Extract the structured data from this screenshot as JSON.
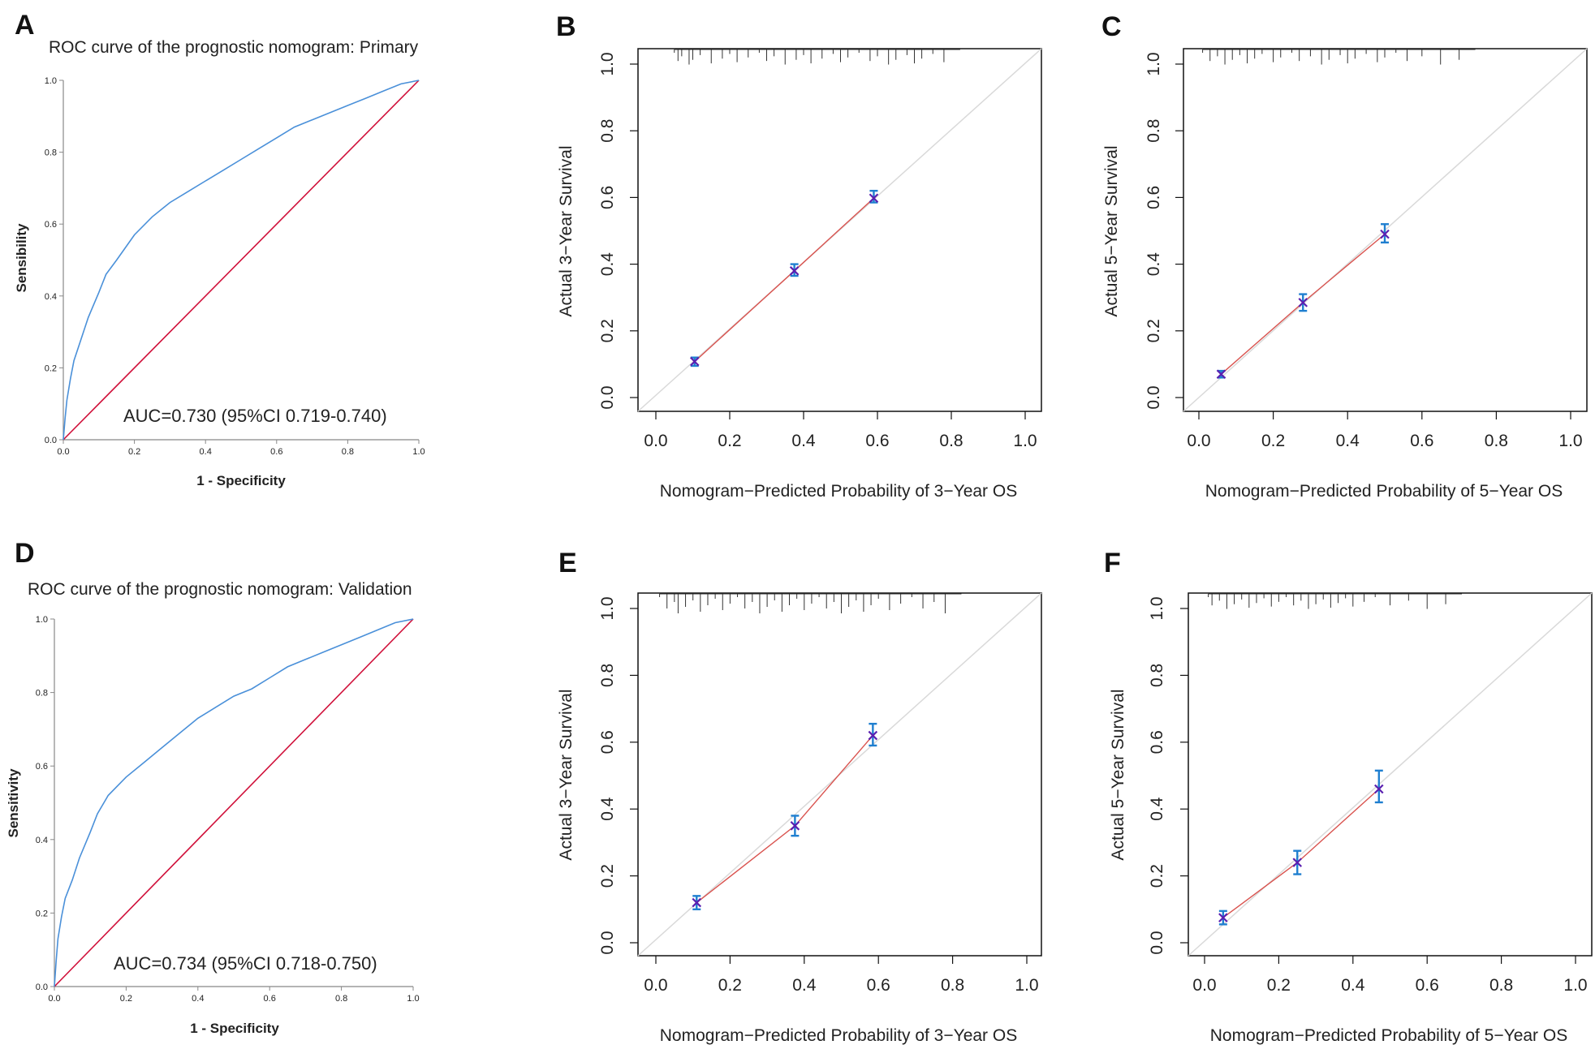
{
  "chart_data": [
    {
      "panel_label": "A",
      "type": "line",
      "kind": "roc",
      "title": "ROC curve of the prognostic nomogram: Primary",
      "xlabel": "1 - Specificity",
      "ylabel": "Sensibility",
      "xlim": [
        0,
        1
      ],
      "ylim": [
        0,
        1
      ],
      "xticks": [
        "0.0",
        "0.2",
        "0.4",
        "0.6",
        "0.8",
        "1.0"
      ],
      "yticks": [
        "0.0",
        "0.2",
        "0.4",
        "0.6",
        "0.8",
        "1.0"
      ],
      "annotation": "AUC=0.730 (95%CI 0.719-0.740)",
      "curve_color": "#4a90d9",
      "reference_color": "#d0103a",
      "series": [
        {
          "x": [
            0,
            0.005,
            0.01,
            0.02,
            0.03,
            0.05,
            0.07,
            0.1,
            0.12,
            0.15,
            0.2,
            0.25,
            0.3,
            0.35,
            0.4,
            0.45,
            0.5,
            0.55,
            0.6,
            0.65,
            0.7,
            0.75,
            0.8,
            0.85,
            0.9,
            0.95,
            1.0
          ],
          "y": [
            0,
            0.06,
            0.11,
            0.17,
            0.22,
            0.28,
            0.34,
            0.41,
            0.46,
            0.5,
            0.57,
            0.62,
            0.66,
            0.69,
            0.72,
            0.75,
            0.78,
            0.81,
            0.84,
            0.87,
            0.89,
            0.91,
            0.93,
            0.95,
            0.97,
            0.99,
            1.0
          ]
        },
        {
          "x": [
            0,
            1
          ],
          "y": [
            0,
            1
          ]
        }
      ]
    },
    {
      "panel_label": "B",
      "type": "scatter",
      "kind": "calibration",
      "xlabel": "Nomogram−Predicted Probability of 3−Year OS",
      "ylabel": "Actual 3−Year Survival",
      "xlim": [
        0,
        1
      ],
      "ylim": [
        0,
        1
      ],
      "xticks": [
        "0.0",
        "0.2",
        "0.4",
        "0.6",
        "0.8",
        "1.0"
      ],
      "yticks": [
        "0.0",
        "0.2",
        "0.4",
        "0.6",
        "0.8",
        "1.0"
      ],
      "points": [
        {
          "x": 0.105,
          "y": 0.108,
          "lo": 0.095,
          "hi": 0.12
        },
        {
          "x": 0.375,
          "y": 0.38,
          "lo": 0.365,
          "hi": 0.4
        },
        {
          "x": 0.59,
          "y": 0.598,
          "lo": 0.585,
          "hi": 0.62
        }
      ],
      "rug": [
        0.05,
        0.06,
        0.07,
        0.09,
        0.1,
        0.12,
        0.15,
        0.18,
        0.2,
        0.22,
        0.25,
        0.28,
        0.3,
        0.32,
        0.35,
        0.38,
        0.4,
        0.42,
        0.45,
        0.48,
        0.5,
        0.52,
        0.55,
        0.58,
        0.6,
        0.63,
        0.65,
        0.68,
        0.7,
        0.72,
        0.75,
        0.78
      ]
    },
    {
      "panel_label": "C",
      "type": "scatter",
      "kind": "calibration",
      "xlabel": "Nomogram−Predicted Probability of 5−Year OS",
      "ylabel": "Actual 5−Year Survival",
      "xlim": [
        0,
        1
      ],
      "ylim": [
        0,
        1
      ],
      "xticks": [
        "0.0",
        "0.2",
        "0.4",
        "0.6",
        "0.8",
        "1.0"
      ],
      "yticks": [
        "0.0",
        "0.2",
        "0.4",
        "0.6",
        "0.8",
        "1.0"
      ],
      "points": [
        {
          "x": 0.06,
          "y": 0.07,
          "lo": 0.06,
          "hi": 0.08
        },
        {
          "x": 0.28,
          "y": 0.285,
          "lo": 0.26,
          "hi": 0.31
        },
        {
          "x": 0.5,
          "y": 0.49,
          "lo": 0.465,
          "hi": 0.52
        }
      ],
      "rug": [
        0.01,
        0.03,
        0.05,
        0.07,
        0.09,
        0.11,
        0.13,
        0.15,
        0.17,
        0.2,
        0.22,
        0.25,
        0.27,
        0.3,
        0.33,
        0.35,
        0.38,
        0.4,
        0.42,
        0.45,
        0.48,
        0.5,
        0.53,
        0.56,
        0.6,
        0.65,
        0.7
      ]
    },
    {
      "panel_label": "D",
      "type": "line",
      "kind": "roc",
      "title": "ROC curve of the prognostic nomogram: Validation",
      "xlabel": "1 - Specificity",
      "ylabel": "Sensitivity",
      "xlim": [
        0,
        1
      ],
      "ylim": [
        0,
        1
      ],
      "xticks": [
        "0.0",
        "0.2",
        "0.4",
        "0.6",
        "0.8",
        "1.0"
      ],
      "yticks": [
        "0.0",
        "0.2",
        "0.4",
        "0.6",
        "0.8",
        "1.0"
      ],
      "annotation": "AUC=0.734 (95%CI 0.718-0.750)",
      "curve_color": "#4a90d9",
      "reference_color": "#d0103a",
      "series": [
        {
          "x": [
            0,
            0.005,
            0.01,
            0.02,
            0.03,
            0.05,
            0.07,
            0.1,
            0.12,
            0.15,
            0.2,
            0.25,
            0.3,
            0.35,
            0.4,
            0.45,
            0.5,
            0.55,
            0.6,
            0.65,
            0.7,
            0.75,
            0.8,
            0.85,
            0.9,
            0.95,
            1.0
          ],
          "y": [
            0,
            0.07,
            0.13,
            0.19,
            0.24,
            0.29,
            0.35,
            0.42,
            0.47,
            0.52,
            0.57,
            0.61,
            0.65,
            0.69,
            0.73,
            0.76,
            0.79,
            0.81,
            0.84,
            0.87,
            0.89,
            0.91,
            0.93,
            0.95,
            0.97,
            0.99,
            1.0
          ]
        },
        {
          "x": [
            0,
            1
          ],
          "y": [
            0,
            1
          ]
        }
      ]
    },
    {
      "panel_label": "E",
      "type": "scatter",
      "kind": "calibration",
      "xlabel": "Nomogram−Predicted Probability of 3−Year OS",
      "ylabel": "Actual 3−Year Survival",
      "xlim": [
        0,
        1
      ],
      "ylim": [
        0,
        1
      ],
      "xticks": [
        "0.0",
        "0.2",
        "0.4",
        "0.6",
        "0.8",
        "1.0"
      ],
      "yticks": [
        "0.0",
        "0.2",
        "0.4",
        "0.6",
        "0.8",
        "1.0"
      ],
      "points": [
        {
          "x": 0.11,
          "y": 0.12,
          "lo": 0.1,
          "hi": 0.14
        },
        {
          "x": 0.375,
          "y": 0.35,
          "lo": 0.32,
          "hi": 0.38
        },
        {
          "x": 0.585,
          "y": 0.62,
          "lo": 0.59,
          "hi": 0.655
        }
      ],
      "rug": [
        0.01,
        0.03,
        0.05,
        0.06,
        0.08,
        0.1,
        0.12,
        0.14,
        0.16,
        0.18,
        0.2,
        0.22,
        0.24,
        0.26,
        0.28,
        0.3,
        0.32,
        0.34,
        0.36,
        0.38,
        0.4,
        0.42,
        0.44,
        0.46,
        0.48,
        0.5,
        0.52,
        0.54,
        0.56,
        0.58,
        0.6,
        0.63,
        0.66,
        0.69,
        0.72,
        0.75,
        0.78
      ]
    },
    {
      "panel_label": "F",
      "type": "scatter",
      "kind": "calibration",
      "xlabel": "Nomogram−Predicted Probability of 5−Year OS",
      "ylabel": "Actual 5−Year Survival",
      "xlim": [
        0,
        1
      ],
      "ylim": [
        0,
        1
      ],
      "xticks": [
        "0.0",
        "0.2",
        "0.4",
        "0.6",
        "0.8",
        "1.0"
      ],
      "yticks": [
        "0.0",
        "0.2",
        "0.4",
        "0.6",
        "0.8",
        "1.0"
      ],
      "points": [
        {
          "x": 0.05,
          "y": 0.075,
          "lo": 0.055,
          "hi": 0.095
        },
        {
          "x": 0.25,
          "y": 0.24,
          "lo": 0.205,
          "hi": 0.275
        },
        {
          "x": 0.47,
          "y": 0.46,
          "lo": 0.42,
          "hi": 0.515
        }
      ],
      "rug": [
        0.01,
        0.02,
        0.04,
        0.06,
        0.08,
        0.1,
        0.12,
        0.14,
        0.16,
        0.18,
        0.2,
        0.22,
        0.24,
        0.26,
        0.28,
        0.3,
        0.32,
        0.34,
        0.36,
        0.38,
        0.4,
        0.43,
        0.46,
        0.5,
        0.55,
        0.6,
        0.65
      ]
    }
  ]
}
